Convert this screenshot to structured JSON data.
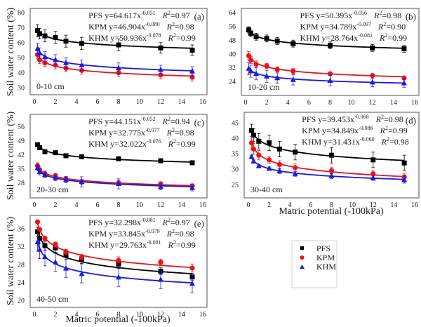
{
  "figure": {
    "ylabel": "Soil water content (%)",
    "xlabel": "Matric potential (-100kPa)",
    "legend": {
      "placement": "bottom-right",
      "entries": [
        {
          "name": "PFS",
          "marker": "square",
          "color": "#000000"
        },
        {
          "name": "KPM",
          "marker": "circle",
          "color": "#e8141b"
        },
        {
          "name": "KHM",
          "marker": "triangle",
          "color": "#1a1adc"
        }
      ]
    }
  },
  "chart_data": [
    {
      "type": "scatter",
      "panel": "(a)",
      "depth": "0-10 cm",
      "xlim": [
        0,
        16
      ],
      "xticks": [
        0,
        2,
        4,
        6,
        8,
        10,
        12,
        14,
        16
      ],
      "ylim": [
        30,
        80
      ],
      "yticks": [
        30,
        40,
        50,
        60,
        70,
        80
      ],
      "ylabel": "Soil water content (%)",
      "xlabel": "",
      "x": [
        0.3,
        0.5,
        1,
        2,
        3,
        4.5,
        8,
        12,
        15
      ],
      "series": [
        {
          "name": "PFS",
          "values": [
            68,
            66,
            64.5,
            63.5,
            61,
            59.5,
            58.5,
            56.5,
            55
          ],
          "errors": [
            4,
            3.5,
            4,
            4,
            4,
            4,
            4,
            3.5,
            3.5
          ],
          "equation": "y=64.617x",
          "exponent": "-0.051",
          "r2": "0.97",
          "a": 64.617,
          "b": -0.051
        },
        {
          "name": "KPM",
          "values": [
            52,
            48.5,
            46.5,
            45,
            43,
            41.5,
            40,
            38.5,
            37
          ],
          "errors": [
            2.5,
            2.5,
            2.5,
            2.5,
            2.5,
            2.5,
            2.5,
            2.5,
            2.5
          ],
          "equation": "y=46.904x",
          "exponent": "-0.080",
          "r2": "0.98",
          "a": 46.904,
          "b": -0.08
        },
        {
          "name": "KHM",
          "values": [
            56,
            53,
            50.5,
            48.5,
            46.5,
            45,
            43,
            42,
            41
          ],
          "errors": [
            3.5,
            3.5,
            3.5,
            3.5,
            3.5,
            3.5,
            3.5,
            3,
            3
          ],
          "equation": "y=50.936x",
          "exponent": "-0.078",
          "r2": "0.99",
          "a": 50.936,
          "b": -0.078
        }
      ]
    },
    {
      "type": "scatter",
      "panel": "(b)",
      "depth": "10-20 cm",
      "xlim": [
        0,
        16
      ],
      "xticks": [
        0,
        2,
        4,
        6,
        8,
        10,
        12,
        14,
        16
      ],
      "ylim": [
        20,
        64
      ],
      "yticks": [
        24,
        32,
        40,
        48,
        56,
        64
      ],
      "ylabel": "",
      "xlabel": "",
      "x": [
        0.3,
        0.5,
        1,
        2,
        3,
        4.5,
        8,
        12,
        15
      ],
      "series": [
        {
          "name": "PFS",
          "values": [
            54,
            52,
            50,
            49,
            47.5,
            46,
            45,
            43.5,
            43
          ],
          "errors": [
            1.8,
            1.8,
            2,
            2,
            2,
            2,
            2,
            2,
            2
          ],
          "equation": "y=50.395x",
          "exponent": "-0.056",
          "r2": "0.98",
          "a": 50.395,
          "b": -0.056
        },
        {
          "name": "KPM",
          "values": [
            39,
            36.5,
            34,
            33,
            31,
            30,
            28.5,
            27.5,
            26
          ],
          "errors": [
            2.5,
            2,
            2,
            1.5,
            1.5,
            1.5,
            1,
            1,
            1
          ],
          "equation": "y=34.789x",
          "exponent": "-0.097",
          "r2": "0.90",
          "a": 34.789,
          "b": -0.097
        },
        {
          "name": "KHM",
          "values": [
            31.5,
            30,
            28.5,
            27,
            26,
            25,
            24.5,
            23.5,
            23
          ],
          "errors": [
            3.5,
            3.5,
            3.5,
            3.5,
            3,
            3,
            3,
            2.5,
            2.5
          ],
          "equation": "y=28.764x",
          "exponent": "-0.081",
          "r2": "0.99",
          "a": 28.764,
          "b": -0.081
        }
      ]
    },
    {
      "type": "scatter",
      "panel": "(c)",
      "depth": "20-30 cm",
      "xlim": [
        0,
        16
      ],
      "xticks": [
        0,
        2,
        4,
        6,
        8,
        10,
        12,
        14,
        16
      ],
      "ylim": [
        24,
        60
      ],
      "yticks": [
        28,
        35,
        42,
        49,
        56
      ],
      "ylabel": "Soil water content (%)",
      "xlabel": "",
      "x": [
        0.3,
        0.5,
        1,
        2,
        3,
        4.5,
        8,
        12,
        15
      ],
      "series": [
        {
          "name": "PFS",
          "values": [
            47,
            45.5,
            43.5,
            43,
            41.5,
            41,
            40,
            39,
            38
          ],
          "errors": [
            0.8,
            0.8,
            0.8,
            0.8,
            0.6,
            0.6,
            0.6,
            0.6,
            0.6
          ],
          "equation": "y=44.151x",
          "exponent": "-0.052",
          "r2": "0.94",
          "a": 44.151,
          "b": -0.052
        },
        {
          "name": "KPM",
          "values": [
            36.5,
            34.5,
            32.5,
            31.5,
            30,
            28.5,
            28,
            27.5,
            26.5
          ],
          "errors": [
            1.5,
            1.5,
            1.5,
            1.2,
            1.2,
            1.2,
            1.2,
            1,
            1
          ],
          "equation": "y=32.775x",
          "exponent": "-0.077",
          "r2": "0.98",
          "a": 32.775,
          "b": -0.077
        },
        {
          "name": "KHM",
          "values": [
            35.5,
            33.5,
            32,
            30.5,
            29.5,
            28.5,
            27.5,
            26,
            25.5
          ],
          "errors": [
            1.5,
            1.5,
            1.5,
            1.5,
            1.5,
            2.5,
            2.5,
            1.5,
            1.5
          ],
          "equation": "y=32.022x",
          "exponent": "-0.076",
          "r2": "0.99",
          "a": 32.022,
          "b": -0.076
        }
      ]
    },
    {
      "type": "scatter",
      "panel": "(d)",
      "depth": "30-40 cm",
      "xlim": [
        0,
        16
      ],
      "xticks": [
        0,
        2,
        4,
        6,
        8,
        10,
        12,
        14,
        16
      ],
      "ylim": [
        23,
        47
      ],
      "yticks": [
        25,
        30,
        35,
        40,
        45
      ],
      "ylabel": "",
      "xlabel": "Matric potential (-100kPa)",
      "x": [
        0.3,
        0.5,
        1,
        2,
        3,
        4.5,
        8,
        12,
        15
      ],
      "series": [
        {
          "name": "PFS",
          "values": [
            42.5,
            41,
            39,
            38.5,
            36.5,
            35.5,
            34.5,
            33,
            32
          ],
          "errors": [
            2,
            2,
            2.5,
            2.5,
            2.5,
            2.5,
            2.5,
            2.5,
            2.5
          ],
          "equation": "y=39.453x",
          "exponent": "-0.068",
          "r2": "0.98",
          "a": 39.453,
          "b": -0.068
        },
        {
          "name": "KPM",
          "values": [
            38.5,
            36.5,
            34.5,
            33,
            31.5,
            30.5,
            29.5,
            28.5,
            27.5
          ],
          "errors": [
            2,
            1.8,
            1.5,
            1.2,
            1.2,
            1.2,
            1,
            1.2,
            1.2
          ],
          "equation": "y=34.849x",
          "exponent": "-0.086",
          "r2": "0.99",
          "a": 34.849,
          "b": -0.086
        },
        {
          "name": "KHM",
          "values": [
            34,
            32.5,
            31,
            30.2,
            29.4,
            28.5,
            27.8,
            27.2,
            26.5
          ],
          "errors": [
            0.5,
            0.5,
            0.5,
            0.5,
            0.8,
            0.8,
            0.8,
            0.8,
            1
          ],
          "equation": "y=31.431x",
          "exponent": "-0.060",
          "r2": "0.98",
          "a": 31.431,
          "b": -0.06
        }
      ]
    },
    {
      "type": "scatter",
      "panel": "(e)",
      "depth": "40-50 cm",
      "xlim": [
        0,
        16
      ],
      "xticks": [
        0,
        2,
        4,
        6,
        8,
        10,
        12,
        14,
        16
      ],
      "ylim": [
        20,
        38
      ],
      "yticks": [
        20,
        24,
        28,
        32,
        36
      ],
      "ylabel": "Soil water content (%)",
      "xlabel": "Matric potential (-100kPa)",
      "x": [
        0.3,
        0.5,
        1,
        2,
        3,
        4.5,
        8,
        12,
        15
      ],
      "series": [
        {
          "name": "PFS",
          "values": [
            35.3,
            33.8,
            32.2,
            31.7,
            30.1,
            29.2,
            28.1,
            26.5,
            25.2
          ],
          "errors": [
            1,
            1,
            1,
            1,
            1,
            1,
            1,
            0.8,
            0.8
          ],
          "equation": "y=32.298x",
          "exponent": "-0.081",
          "r2": "0.97",
          "a": 32.298,
          "b": -0.081
        },
        {
          "name": "KPM",
          "values": [
            37.5,
            35.8,
            33.8,
            32.5,
            30.8,
            29.6,
            28.9,
            28.5,
            27.2
          ],
          "errors": [
            0.4,
            0.4,
            0.5,
            0.5,
            0.6,
            0.6,
            0.8,
            0.7,
            0.9
          ],
          "equation": "y=33.845x",
          "exponent": "-0.079",
          "r2": "0.98",
          "a": 33.845,
          "b": -0.079
        },
        {
          "name": "KHM",
          "values": [
            33,
            31.3,
            29.7,
            28.5,
            27.1,
            25.9,
            25.1,
            24.6,
            23.7
          ],
          "errors": [
            2,
            2,
            2,
            2,
            2,
            2,
            2,
            2,
            2
          ],
          "equation": "y=29.763x",
          "exponent": "-0.081",
          "r2": "0.99",
          "a": 29.763,
          "b": -0.081
        }
      ]
    }
  ]
}
